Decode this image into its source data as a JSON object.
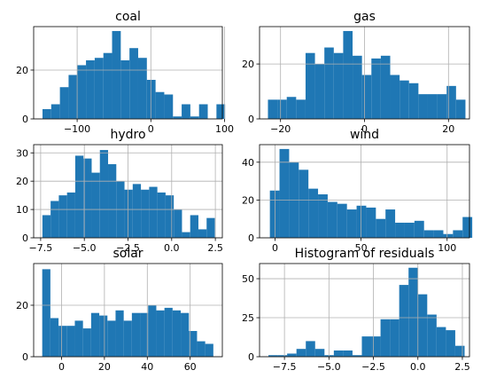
{
  "chart_data": [
    {
      "type": "bar",
      "title": "coal",
      "xlim": [
        -159,
        97
      ],
      "ylim": [
        0,
        37.8
      ],
      "grid": true,
      "xticks": [
        {
          "value": -100,
          "label": "−100"
        },
        {
          "value": 0,
          "label": "0"
        },
        {
          "value": 100,
          "label": "100"
        }
      ],
      "yticks": [
        {
          "value": 0,
          "label": "0"
        },
        {
          "value": 20,
          "label": "20"
        }
      ],
      "bins": {
        "start": -147,
        "width": 11.8,
        "counts": [
          4,
          6,
          13,
          18,
          22,
          24,
          25,
          27,
          36,
          24,
          29,
          25,
          16,
          11,
          10,
          1,
          6,
          1,
          6,
          0,
          6
        ]
      }
    },
    {
      "type": "bar",
      "title": "gas",
      "xlim": [
        -25,
        25
      ],
      "ylim": [
        0,
        33.6
      ],
      "grid": true,
      "xticks": [
        {
          "value": -20,
          "label": "−20"
        },
        {
          "value": 0,
          "label": "0"
        },
        {
          "value": 20,
          "label": "20"
        }
      ],
      "yticks": [
        {
          "value": 0,
          "label": "0"
        },
        {
          "value": 20,
          "label": "20"
        }
      ],
      "bins": {
        "start": -23,
        "width": 2.24,
        "counts": [
          7,
          7,
          8,
          7,
          24,
          20,
          26,
          24,
          32,
          23,
          16,
          22,
          23,
          16,
          14,
          13,
          9,
          9,
          9,
          12,
          7
        ]
      }
    },
    {
      "type": "bar",
      "title": "hydro",
      "xlim": [
        -7.9,
        2.9
      ],
      "ylim": [
        0,
        32.9
      ],
      "grid": true,
      "xticks": [
        {
          "value": -7.5,
          "label": "−7.5"
        },
        {
          "value": -5,
          "label": "−5.0"
        },
        {
          "value": -2.5,
          "label": "−2.5"
        },
        {
          "value": 0,
          "label": "0.0"
        },
        {
          "value": 2.5,
          "label": "2.5"
        }
      ],
      "yticks": [
        {
          "value": 0,
          "label": "0"
        },
        {
          "value": 10,
          "label": "10"
        },
        {
          "value": 20,
          "label": "20"
        },
        {
          "value": 30,
          "label": "30"
        }
      ],
      "bins": {
        "start": -7.4,
        "width": 0.47,
        "counts": [
          8,
          13,
          15,
          16,
          29,
          28,
          23,
          31,
          26,
          20,
          17,
          19,
          17,
          18,
          16,
          15,
          10,
          2,
          8,
          3,
          7
        ]
      }
    },
    {
      "type": "bar",
      "title": "wind",
      "xlim": [
        -9,
        113
      ],
      "ylim": [
        0,
        49.3
      ],
      "grid": true,
      "xticks": [
        {
          "value": 0,
          "label": "0"
        },
        {
          "value": 50,
          "label": "50"
        },
        {
          "value": 100,
          "label": "100"
        }
      ],
      "yticks": [
        {
          "value": 0,
          "label": "0"
        },
        {
          "value": 20,
          "label": "20"
        },
        {
          "value": 40,
          "label": "40"
        }
      ],
      "bins": {
        "start": -3,
        "width": 5.6,
        "counts": [
          25,
          47,
          40,
          36,
          26,
          23,
          19,
          18,
          15,
          17,
          16,
          10,
          15,
          8,
          8,
          9,
          4,
          4,
          2,
          4,
          11
        ]
      }
    },
    {
      "type": "bar",
      "title": "solar",
      "xlim": [
        -13,
        75
      ],
      "ylim": [
        0,
        36.2
      ],
      "grid": true,
      "xticks": [
        {
          "value": 0,
          "label": "0"
        },
        {
          "value": 20,
          "label": "20"
        },
        {
          "value": 40,
          "label": "40"
        },
        {
          "value": 60,
          "label": "60"
        }
      ],
      "yticks": [
        {
          "value": 0,
          "label": "0"
        },
        {
          "value": 20,
          "label": "20"
        }
      ],
      "bins": {
        "start": -9,
        "width": 3.8,
        "counts": [
          34,
          15,
          12,
          12,
          14,
          11,
          17,
          16,
          14,
          18,
          14,
          17,
          17,
          20,
          18,
          19,
          18,
          17,
          10,
          6,
          5
        ]
      }
    },
    {
      "type": "bar",
      "title": "Histogram of residuals",
      "xlim": [
        -8.9,
        2.9
      ],
      "ylim": [
        0,
        59.7
      ],
      "grid": true,
      "xticks": [
        {
          "value": -7.5,
          "label": "−7.5"
        },
        {
          "value": -5,
          "label": "−5.0"
        },
        {
          "value": -2.5,
          "label": "−2.5"
        },
        {
          "value": 0,
          "label": "0.0"
        },
        {
          "value": 2.5,
          "label": "2.5"
        }
      ],
      "yticks": [
        {
          "value": 0,
          "label": "0"
        },
        {
          "value": 25,
          "label": "25"
        },
        {
          "value": 50,
          "label": "50"
        }
      ],
      "bins": {
        "start": -8.4,
        "width": 0.525,
        "counts": [
          1,
          1,
          2,
          5,
          10,
          5,
          1,
          4,
          4,
          1,
          13,
          13,
          24,
          24,
          46,
          57,
          40,
          27,
          19,
          17,
          7
        ]
      }
    }
  ]
}
